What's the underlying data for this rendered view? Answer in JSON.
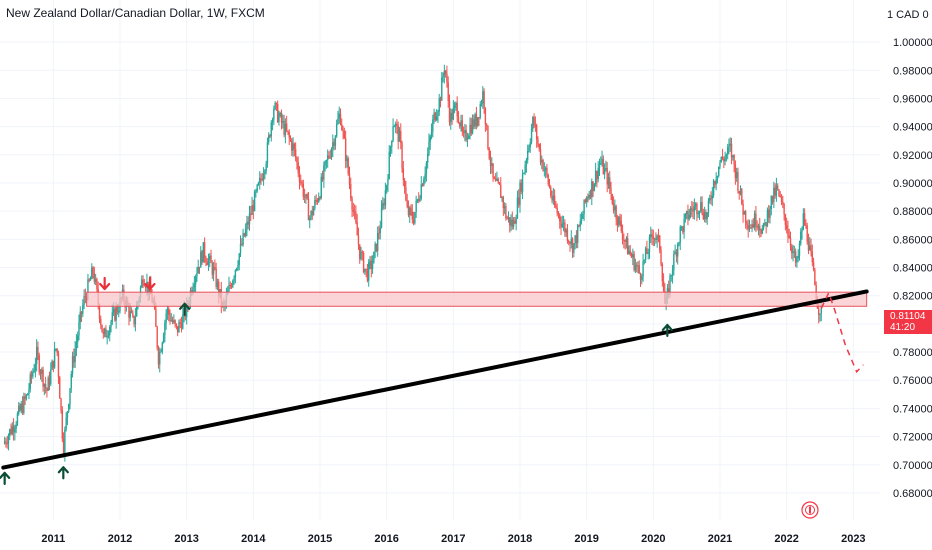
{
  "chart_title": "New Zealand Dollar/Canadian Dollar, 1W, FXCM",
  "price_label": {
    "value": "0.81104",
    "countdown": "41:20"
  },
  "colors": {
    "up_candle": "#26a69a",
    "down_candle": "#ef5350",
    "zone_fill": "#f8c6c9",
    "zone_border": "#e8505b",
    "trendline": "#000000",
    "forecast": "#f23645",
    "grid": "#f0f3fa",
    "axis_text": "#131722",
    "up_arrow": "#0b4d35",
    "down_arrow": "#e8303c"
  },
  "chart_data": {
    "type": "candlestick",
    "title": "New Zealand Dollar/Canadian Dollar, 1W, FXCM",
    "symbol": "NZDCAD",
    "timeframe": "1W",
    "broker": "FXCM",
    "y_unit_label": "1 CAD",
    "y_unit_value": "0",
    "ylim": [
      0.675,
      1.01
    ],
    "xlim": [
      2010.2,
      2023.4
    ],
    "y_ticks": [
      "1.00000",
      "0.98000",
      "0.96000",
      "0.94000",
      "0.92000",
      "0.90000",
      "0.88000",
      "0.86000",
      "0.84000",
      "0.82000",
      "0.80000",
      "0.78000",
      "0.76000",
      "0.74000",
      "0.72000",
      "0.70000",
      "0.68000"
    ],
    "x_ticks": [
      "2011",
      "2012",
      "2013",
      "2014",
      "2015",
      "2016",
      "2017",
      "2018",
      "2019",
      "2020",
      "2021",
      "2022",
      "2023"
    ],
    "current_price": 0.81104,
    "price_path": [
      [
        2010.25,
        0.715
      ],
      [
        2010.4,
        0.728
      ],
      [
        2010.6,
        0.748
      ],
      [
        2010.75,
        0.778
      ],
      [
        2010.9,
        0.752
      ],
      [
        2011.05,
        0.785
      ],
      [
        2011.15,
        0.712
      ],
      [
        2011.28,
        0.77
      ],
      [
        2011.45,
        0.815
      ],
      [
        2011.6,
        0.838
      ],
      [
        2011.75,
        0.79
      ],
      [
        2011.9,
        0.805
      ],
      [
        2012.05,
        0.82
      ],
      [
        2012.2,
        0.8
      ],
      [
        2012.35,
        0.835
      ],
      [
        2012.5,
        0.815
      ],
      [
        2012.58,
        0.775
      ],
      [
        2012.7,
        0.81
      ],
      [
        2012.85,
        0.795
      ],
      [
        2013.0,
        0.81
      ],
      [
        2013.1,
        0.832
      ],
      [
        2013.25,
        0.852
      ],
      [
        2013.4,
        0.838
      ],
      [
        2013.55,
        0.81
      ],
      [
        2013.7,
        0.835
      ],
      [
        2013.85,
        0.86
      ],
      [
        2014.0,
        0.885
      ],
      [
        2014.1,
        0.9
      ],
      [
        2014.2,
        0.92
      ],
      [
        2014.3,
        0.955
      ],
      [
        2014.45,
        0.94
      ],
      [
        2014.6,
        0.925
      ],
      [
        2014.72,
        0.9
      ],
      [
        2014.85,
        0.875
      ],
      [
        2015.0,
        0.895
      ],
      [
        2015.1,
        0.915
      ],
      [
        2015.2,
        0.93
      ],
      [
        2015.3,
        0.95
      ],
      [
        2015.4,
        0.915
      ],
      [
        2015.5,
        0.88
      ],
      [
        2015.6,
        0.85
      ],
      [
        2015.7,
        0.835
      ],
      [
        2015.8,
        0.845
      ],
      [
        2015.9,
        0.87
      ],
      [
        2016.0,
        0.9
      ],
      [
        2016.1,
        0.945
      ],
      [
        2016.2,
        0.93
      ],
      [
        2016.3,
        0.88
      ],
      [
        2016.4,
        0.875
      ],
      [
        2016.5,
        0.895
      ],
      [
        2016.6,
        0.915
      ],
      [
        2016.7,
        0.945
      ],
      [
        2016.8,
        0.96
      ],
      [
        2016.87,
        0.985
      ],
      [
        2016.95,
        0.945
      ],
      [
        2017.05,
        0.955
      ],
      [
        2017.15,
        0.93
      ],
      [
        2017.25,
        0.94
      ],
      [
        2017.35,
        0.945
      ],
      [
        2017.45,
        0.965
      ],
      [
        2017.5,
        0.935
      ],
      [
        2017.6,
        0.9
      ],
      [
        2017.7,
        0.895
      ],
      [
        2017.8,
        0.875
      ],
      [
        2017.9,
        0.87
      ],
      [
        2018.0,
        0.895
      ],
      [
        2018.1,
        0.92
      ],
      [
        2018.2,
        0.945
      ],
      [
        2018.3,
        0.92
      ],
      [
        2018.4,
        0.905
      ],
      [
        2018.5,
        0.885
      ],
      [
        2018.6,
        0.875
      ],
      [
        2018.7,
        0.865
      ],
      [
        2018.8,
        0.855
      ],
      [
        2018.9,
        0.87
      ],
      [
        2019.0,
        0.89
      ],
      [
        2019.1,
        0.9
      ],
      [
        2019.2,
        0.915
      ],
      [
        2019.3,
        0.905
      ],
      [
        2019.4,
        0.885
      ],
      [
        2019.5,
        0.87
      ],
      [
        2019.6,
        0.855
      ],
      [
        2019.7,
        0.845
      ],
      [
        2019.8,
        0.835
      ],
      [
        2019.9,
        0.85
      ],
      [
        2020.0,
        0.865
      ],
      [
        2020.1,
        0.855
      ],
      [
        2020.18,
        0.81
      ],
      [
        2020.28,
        0.84
      ],
      [
        2020.4,
        0.865
      ],
      [
        2020.55,
        0.88
      ],
      [
        2020.7,
        0.885
      ],
      [
        2020.8,
        0.875
      ],
      [
        2020.9,
        0.9
      ],
      [
        2021.0,
        0.915
      ],
      [
        2021.1,
        0.92
      ],
      [
        2021.15,
        0.925
      ],
      [
        2021.25,
        0.905
      ],
      [
        2021.35,
        0.88
      ],
      [
        2021.45,
        0.87
      ],
      [
        2021.55,
        0.875
      ],
      [
        2021.65,
        0.865
      ],
      [
        2021.75,
        0.885
      ],
      [
        2021.85,
        0.895
      ],
      [
        2021.95,
        0.88
      ],
      [
        2022.05,
        0.86
      ],
      [
        2022.15,
        0.84
      ],
      [
        2022.25,
        0.875
      ],
      [
        2022.32,
        0.86
      ],
      [
        2022.4,
        0.835
      ],
      [
        2022.47,
        0.812
      ],
      [
        2022.52,
        0.811
      ]
    ],
    "support_zone": {
      "y_min": 0.8125,
      "y_max": 0.8225,
      "x_start": 2011.5,
      "x_end": 2023.2
    },
    "trendline": {
      "points": [
        [
          2010.25,
          0.698
        ],
        [
          2023.2,
          0.823
        ]
      ]
    },
    "forecast_path": [
      [
        2022.52,
        0.811
      ],
      [
        2022.63,
        0.822
      ],
      [
        2022.72,
        0.81
      ],
      [
        2022.88,
        0.785
      ],
      [
        2023.05,
        0.766
      ],
      [
        2023.15,
        0.771
      ]
    ],
    "up_arrows": [
      {
        "x": 2010.27,
        "y": 0.69
      },
      {
        "x": 2011.15,
        "y": 0.694
      },
      {
        "x": 2012.97,
        "y": 0.81
      },
      {
        "x": 2020.21,
        "y": 0.795
      }
    ],
    "down_arrows": [
      {
        "x": 2011.77,
        "y": 0.829
      },
      {
        "x": 2012.45,
        "y": 0.829
      }
    ]
  }
}
